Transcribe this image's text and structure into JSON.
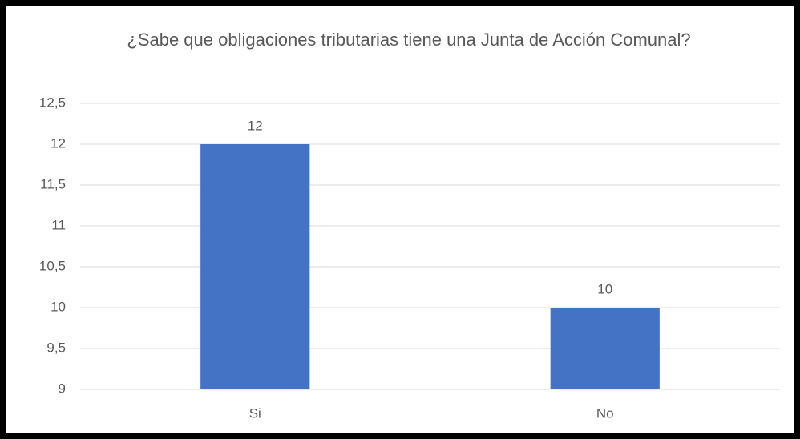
{
  "chart_data": {
    "type": "bar",
    "title": "¿Sabe que obligaciones tributarias tiene una Junta de Acción Comunal?",
    "categories": [
      "Si",
      "No"
    ],
    "values": [
      12,
      10
    ],
    "color": "#4472c4",
    "ylim": [
      9,
      12.5
    ],
    "yticks": [
      9,
      {
        "value": 9.5,
        "label": "9,5"
      },
      10,
      {
        "value": 10.5,
        "label": "10,5"
      },
      11,
      {
        "value": 11.5,
        "label": "11,5"
      },
      12,
      {
        "value": 12.5,
        "label": "12,5"
      }
    ],
    "grid": true
  }
}
